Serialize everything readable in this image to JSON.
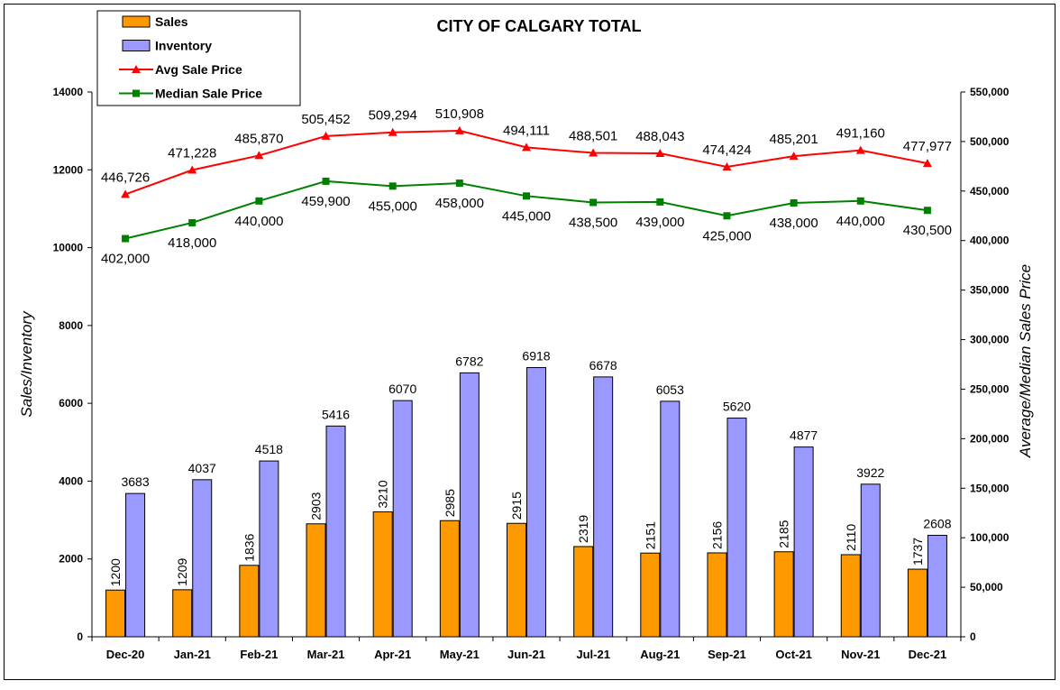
{
  "chart_data": {
    "type": "bar",
    "title": "CITY OF CALGARY TOTAL",
    "ylabel": "Sales/Inventory",
    "y2label": "Average/Median Sales Price",
    "ylim": [
      0,
      14000
    ],
    "y2lim": [
      0,
      550000
    ],
    "yticks": [
      0,
      2000,
      4000,
      6000,
      8000,
      10000,
      12000,
      14000
    ],
    "y2ticks": [
      "0",
      "50,000",
      "100,000",
      "150,000",
      "200,000",
      "250,000",
      "300,000",
      "350,000",
      "400,000",
      "450,000",
      "500,000",
      "550,000"
    ],
    "y2tick_values": [
      0,
      50000,
      100000,
      150000,
      200000,
      250000,
      300000,
      350000,
      400000,
      450000,
      500000,
      550000
    ],
    "categories": [
      "Dec-20",
      "Jan-21",
      "Feb-21",
      "Mar-21",
      "Apr-21",
      "May-21",
      "Jun-21",
      "Jul-21",
      "Aug-21",
      "Sep-21",
      "Oct-21",
      "Nov-21",
      "Dec-21"
    ],
    "legend_position": "top-left",
    "series": [
      {
        "name": "Sales",
        "kind": "bar",
        "axis": "left",
        "color": "#FF9900",
        "values": [
          1200,
          1209,
          1836,
          2903,
          3210,
          2985,
          2915,
          2319,
          2151,
          2156,
          2185,
          2110,
          1737
        ],
        "labels": [
          "1200",
          "1209",
          "1836",
          "2903",
          "3210",
          "2985",
          "2915",
          "2319",
          "2151",
          "2156",
          "2185",
          "2110",
          "1737"
        ]
      },
      {
        "name": "Inventory",
        "kind": "bar",
        "axis": "left",
        "color": "#9999FF",
        "values": [
          3683,
          4037,
          4518,
          5416,
          6070,
          6782,
          6918,
          6678,
          6053,
          5620,
          4877,
          3922,
          2608
        ],
        "labels": [
          "3683",
          "4037",
          "4518",
          "5416",
          "6070",
          "6782",
          "6918",
          "6678",
          "6053",
          "5620",
          "4877",
          "3922",
          "2608"
        ]
      },
      {
        "name": "Avg Sale Price",
        "kind": "line",
        "axis": "right",
        "color": "#FF0000",
        "marker": "triangle",
        "values": [
          446726,
          471228,
          485870,
          505452,
          509294,
          510908,
          494111,
          488501,
          488043,
          474424,
          485201,
          491160,
          477977
        ],
        "labels": [
          "446,726",
          "471,228",
          "485,870",
          "505,452",
          "509,294",
          "510,908",
          "494,111",
          "488,501",
          "488,043",
          "474,424",
          "485,201",
          "491,160",
          "477,977"
        ]
      },
      {
        "name": "Median Sale Price",
        "kind": "line",
        "axis": "right",
        "color": "#008000",
        "marker": "square",
        "values": [
          402000,
          418000,
          440000,
          459900,
          455000,
          458000,
          445000,
          438500,
          439000,
          425000,
          438000,
          440000,
          430500
        ],
        "labels": [
          "402,000",
          "418,000",
          "440,000",
          "459,900",
          "455,000",
          "458,000",
          "445,000",
          "438,500",
          "439,000",
          "425,000",
          "438,000",
          "440,000",
          "430,500"
        ]
      }
    ]
  }
}
